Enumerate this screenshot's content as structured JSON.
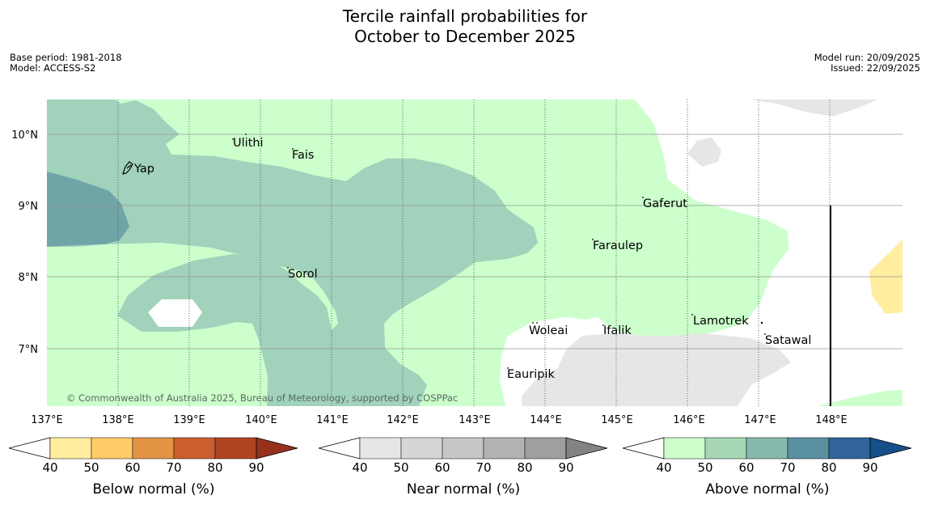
{
  "title": {
    "line1": "Tercile rainfall probabilities for",
    "line2": "October to December 2025"
  },
  "meta": {
    "base_period": "Base period: 1981-2018",
    "model": "Model: ACCESS-S2",
    "model_run": "Model run: 20/09/2025",
    "issued": "Issued: 22/09/2025"
  },
  "map": {
    "lat_ticks": [
      "10°N",
      "9°N",
      "8°N",
      "7°N"
    ],
    "lon_ticks": [
      "137°E",
      "138°E",
      "139°E",
      "140°E",
      "141°E",
      "142°E",
      "143°E",
      "144°E",
      "145°E",
      "146°E",
      "147°E",
      "148°E"
    ],
    "islands": [
      "Ulithi",
      "Fais",
      "Yap",
      "Gaferut",
      "Faraulep",
      "Sorol",
      "Woleai",
      "Ifalik",
      "Lamotrek",
      "Satawal",
      "Eauripik"
    ],
    "copyright": "© Commonwealth of Australia 2025, Bureau of Meteorology, supported by COSPPac"
  },
  "legend": {
    "below": {
      "title": "Below normal (%)",
      "ticks": [
        "40",
        "50",
        "60",
        "70",
        "80",
        "90"
      ],
      "colors": [
        "#ffffff",
        "#ffeda0",
        "#fecb66",
        "#e29444",
        "#cb5f30",
        "#ae4422",
        "#96311d"
      ]
    },
    "near": {
      "title": "Near normal (%)",
      "ticks": [
        "40",
        "50",
        "60",
        "70",
        "80",
        "90"
      ],
      "colors": [
        "#ffffff",
        "#e6e6e6",
        "#d6d6d6",
        "#c6c6c6",
        "#b3b3b3",
        "#9f9f9f",
        "#838383"
      ]
    },
    "above": {
      "title": "Above normal (%)",
      "ticks": [
        "40",
        "50",
        "60",
        "70",
        "80",
        "90"
      ],
      "colors": [
        "#ffffff",
        "#ccffcc",
        "#a5d7b4",
        "#87b8ae",
        "#5a91a1",
        "#30649b",
        "#164f8a"
      ]
    }
  }
}
